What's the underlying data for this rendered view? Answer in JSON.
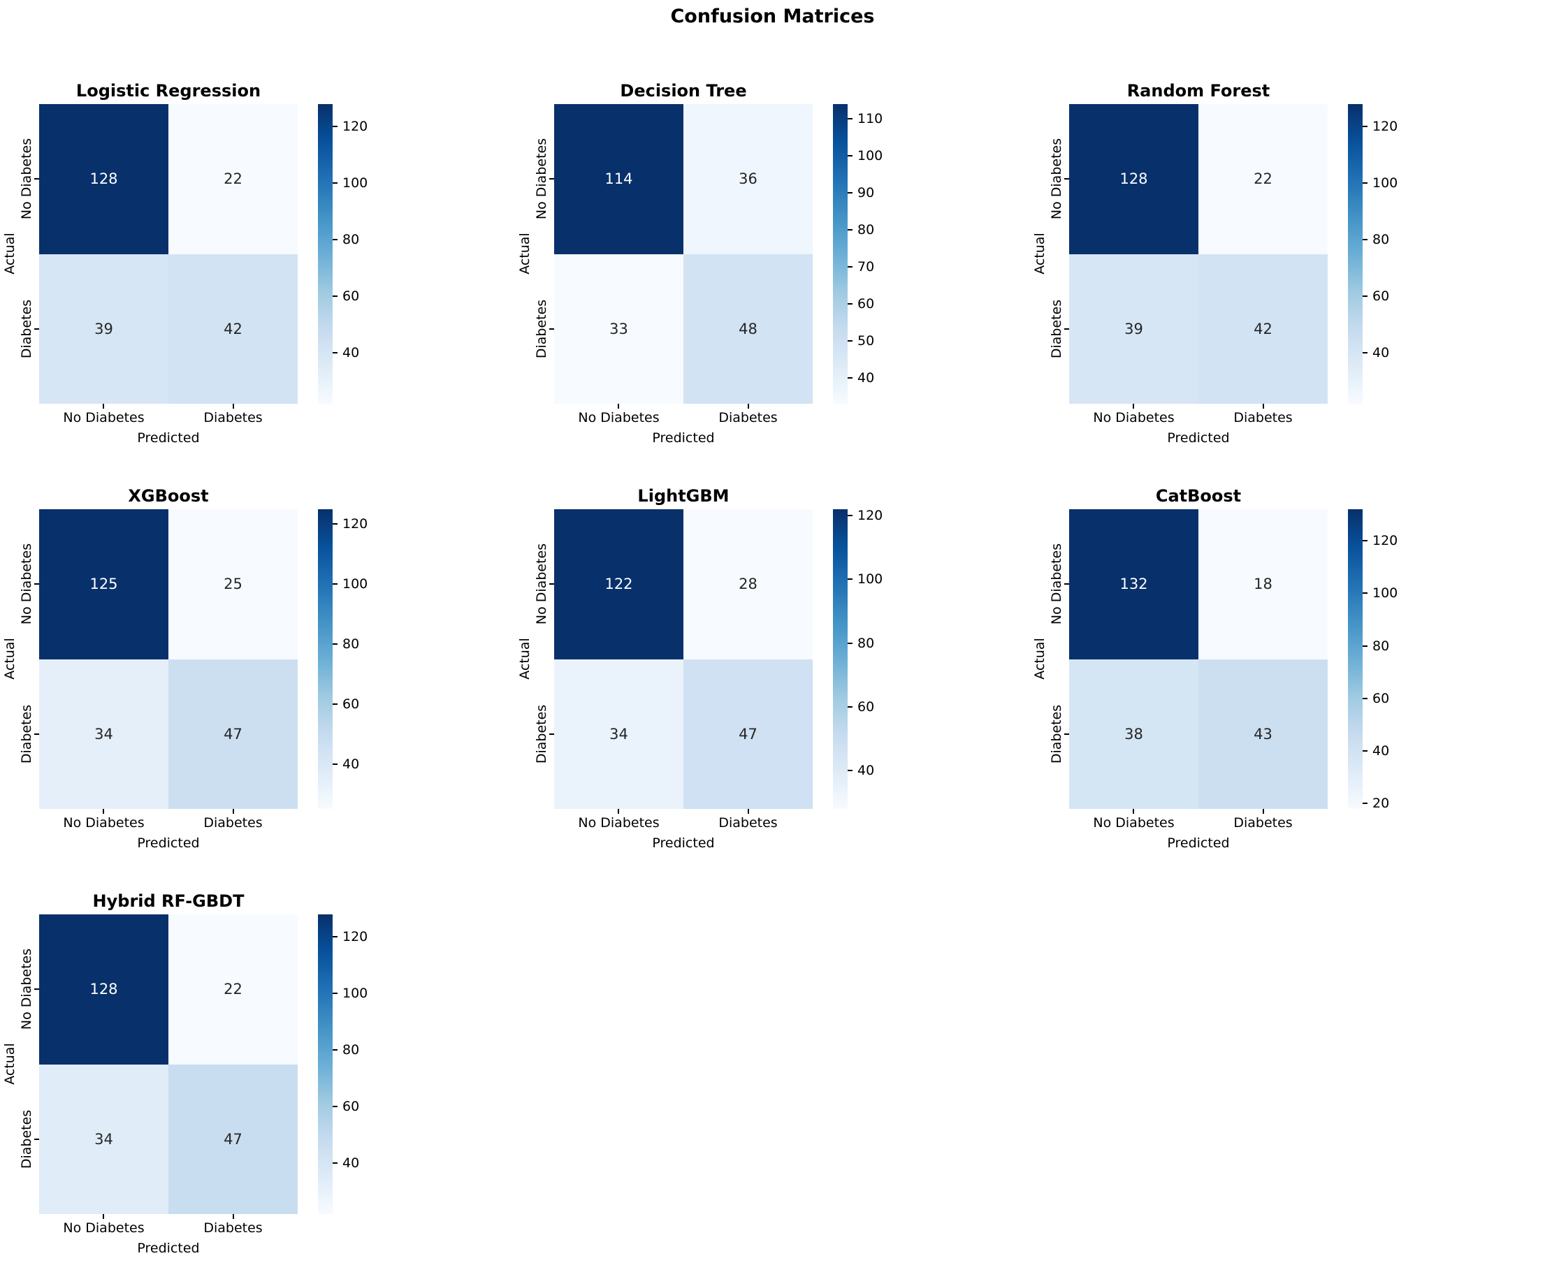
{
  "figure_title": "Confusion Matrices",
  "axis": {
    "xlabel": "Predicted",
    "ylabel": "Actual",
    "xticklabels": [
      "No Diabetes",
      "Diabetes"
    ],
    "yticklabels": [
      "No Diabetes",
      "Diabetes"
    ]
  },
  "colors": {
    "colormap_name": "Blues",
    "blues_stops": [
      "#f7fbff",
      "#deebf7",
      "#c6dbef",
      "#9ecae1",
      "#6baed6",
      "#4292c6",
      "#2171b5",
      "#08519c",
      "#08306b"
    ],
    "cell_text_dark": "#262626",
    "cell_text_light": "#ffffff",
    "tick_color": "#000000"
  },
  "chart_data": [
    {
      "type": "heatmap",
      "title": "Logistic Regression",
      "matrix": [
        [
          128,
          22
        ],
        [
          39,
          42
        ]
      ],
      "colorbar_ticks": [
        40,
        60,
        80,
        100,
        120
      ]
    },
    {
      "type": "heatmap",
      "title": "Decision Tree",
      "matrix": [
        [
          114,
          36
        ],
        [
          33,
          48
        ]
      ],
      "colorbar_ticks": [
        40,
        50,
        60,
        70,
        80,
        90,
        100,
        110
      ]
    },
    {
      "type": "heatmap",
      "title": "Random Forest",
      "matrix": [
        [
          128,
          22
        ],
        [
          39,
          42
        ]
      ],
      "colorbar_ticks": [
        40,
        60,
        80,
        100,
        120
      ]
    },
    {
      "type": "heatmap",
      "title": "XGBoost",
      "matrix": [
        [
          125,
          25
        ],
        [
          34,
          47
        ]
      ],
      "colorbar_ticks": [
        40,
        60,
        80,
        100,
        120
      ]
    },
    {
      "type": "heatmap",
      "title": "LightGBM",
      "matrix": [
        [
          122,
          28
        ],
        [
          34,
          47
        ]
      ],
      "colorbar_ticks": [
        40,
        60,
        80,
        100,
        120
      ]
    },
    {
      "type": "heatmap",
      "title": "CatBoost",
      "matrix": [
        [
          132,
          18
        ],
        [
          38,
          43
        ]
      ],
      "colorbar_ticks": [
        20,
        40,
        60,
        80,
        100,
        120
      ]
    },
    {
      "type": "heatmap",
      "title": "Hybrid RF-GBDT",
      "matrix": [
        [
          128,
          22
        ],
        [
          34,
          47
        ]
      ],
      "colorbar_ticks": [
        40,
        60,
        80,
        100,
        120
      ]
    }
  ]
}
